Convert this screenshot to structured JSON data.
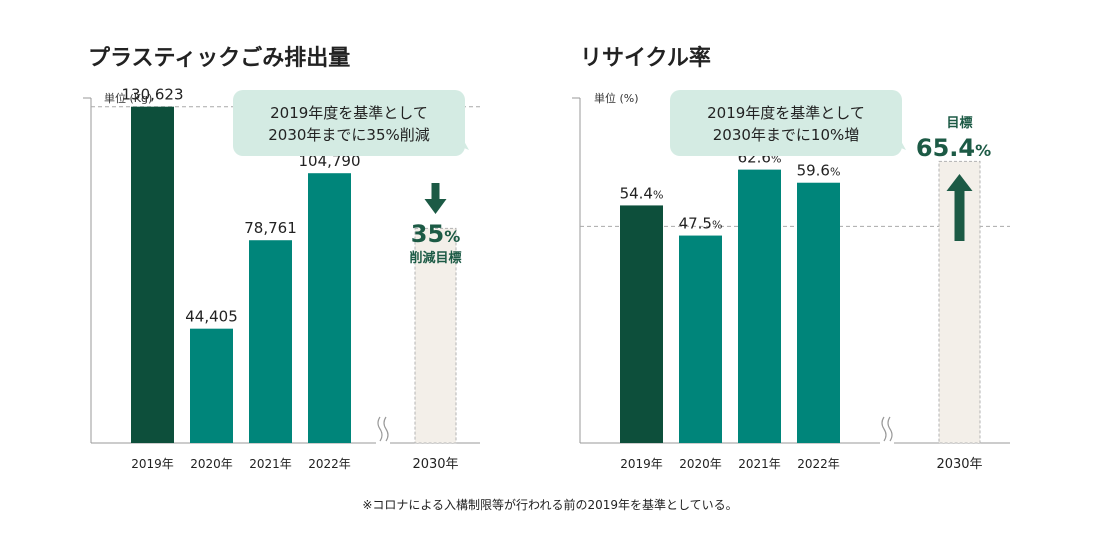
{
  "colors": {
    "dark_green": "#0d4f3b",
    "teal": "#00857a",
    "target_fill": "#f3efe9",
    "callout_bg": "#d4ebe3",
    "target_text": "#1c5a45",
    "axis": "#999999"
  },
  "footnote": "※コロナによる入構制限等が行われる前の2019年を基準としている。",
  "chart_data": [
    {
      "type": "bar",
      "title": "プラスティックごみ排出量",
      "unit_label": "単位 (Kg)",
      "categories": [
        "2019年",
        "2020年",
        "2021年",
        "2022年"
      ],
      "values": [
        130623,
        44405,
        78761,
        104790
      ],
      "value_labels": [
        "130,623",
        "44,405",
        "78,761",
        "104,790"
      ],
      "ylim": [
        0,
        134000
      ],
      "baseline_year": "2019年",
      "target": {
        "category": "2030年",
        "value": 84905,
        "headline": "35%",
        "sub": "削減目標",
        "direction": "down"
      },
      "callout": [
        "2019年度を基準として",
        "2030年までに35%削減"
      ]
    },
    {
      "type": "bar",
      "title": "リサイクル率",
      "unit_label": "単位 (%)",
      "categories": [
        "2019年",
        "2020年",
        "2021年",
        "2022年"
      ],
      "values": [
        54.4,
        47.5,
        62.6,
        59.6
      ],
      "value_labels": [
        "54.4",
        "47.5",
        "62.6",
        "59.6"
      ],
      "value_suffix": "%",
      "ylim": [
        0,
        79
      ],
      "baseline_year": "2019年",
      "target": {
        "category": "2030年",
        "value": 65.4,
        "headline": "65.4",
        "headline_suffix": "%",
        "sub": "目標",
        "direction": "up"
      },
      "callout": [
        "2019年度を基準として",
        "2030年までに10%増"
      ]
    }
  ]
}
